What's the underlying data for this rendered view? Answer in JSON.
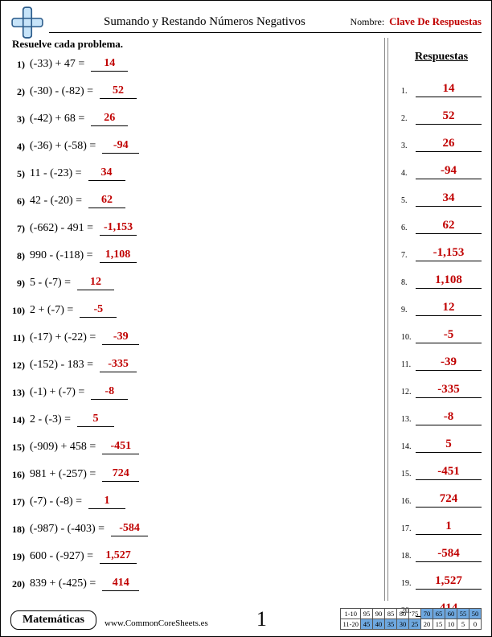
{
  "header": {
    "title": "Sumando y Restando Números Negativos",
    "name_label": "Nombre:",
    "answer_key": "Clave De Respuestas"
  },
  "instruction": "Resuelve cada problema.",
  "answers_header": "Respuestas",
  "problems": [
    {
      "n": "1)",
      "expr": "(-33) + 47 =",
      "ans": "14"
    },
    {
      "n": "2)",
      "expr": "(-30) - (-82) =",
      "ans": "52"
    },
    {
      "n": "3)",
      "expr": "(-42) + 68 =",
      "ans": "26"
    },
    {
      "n": "4)",
      "expr": "(-36) + (-58) =",
      "ans": "-94"
    },
    {
      "n": "5)",
      "expr": "11 - (-23) =",
      "ans": "34"
    },
    {
      "n": "6)",
      "expr": "42 - (-20) =",
      "ans": "62"
    },
    {
      "n": "7)",
      "expr": "(-662) - 491 =",
      "ans": "-1,153"
    },
    {
      "n": "8)",
      "expr": "990 - (-118) =",
      "ans": "1,108"
    },
    {
      "n": "9)",
      "expr": "5 - (-7) =",
      "ans": "12"
    },
    {
      "n": "10)",
      "expr": "2 + (-7) =",
      "ans": "-5"
    },
    {
      "n": "11)",
      "expr": "(-17) + (-22) =",
      "ans": "-39"
    },
    {
      "n": "12)",
      "expr": "(-152) - 183 =",
      "ans": "-335"
    },
    {
      "n": "13)",
      "expr": "(-1) + (-7) =",
      "ans": "-8"
    },
    {
      "n": "14)",
      "expr": "2 - (-3) =",
      "ans": "5"
    },
    {
      "n": "15)",
      "expr": "(-909) + 458 =",
      "ans": "-451"
    },
    {
      "n": "16)",
      "expr": "981 + (-257) =",
      "ans": "724"
    },
    {
      "n": "17)",
      "expr": "(-7) - (-8) =",
      "ans": "1"
    },
    {
      "n": "18)",
      "expr": "(-987) - (-403) =",
      "ans": "-584"
    },
    {
      "n": "19)",
      "expr": "600 - (-927) =",
      "ans": "1,527"
    },
    {
      "n": "20)",
      "expr": "839 + (-425) =",
      "ans": "414"
    }
  ],
  "footer": {
    "subject": "Matemáticas",
    "url": "www.CommonCoreSheets.es",
    "page": "1"
  },
  "score_grid": {
    "row_labels": [
      "1-10",
      "11-20"
    ],
    "row1": [
      "95",
      "90",
      "85",
      "80",
      "75",
      "70",
      "65",
      "60",
      "55",
      "50"
    ],
    "row2": [
      "45",
      "40",
      "35",
      "30",
      "25",
      "20",
      "15",
      "10",
      "5",
      "0"
    ],
    "highlight_color": "#6ea8e0",
    "highlight_row1_from": 5,
    "highlight_row2_to": 4
  },
  "colors": {
    "answer_red": "#c00000",
    "text": "#000000",
    "background": "#ffffff"
  }
}
